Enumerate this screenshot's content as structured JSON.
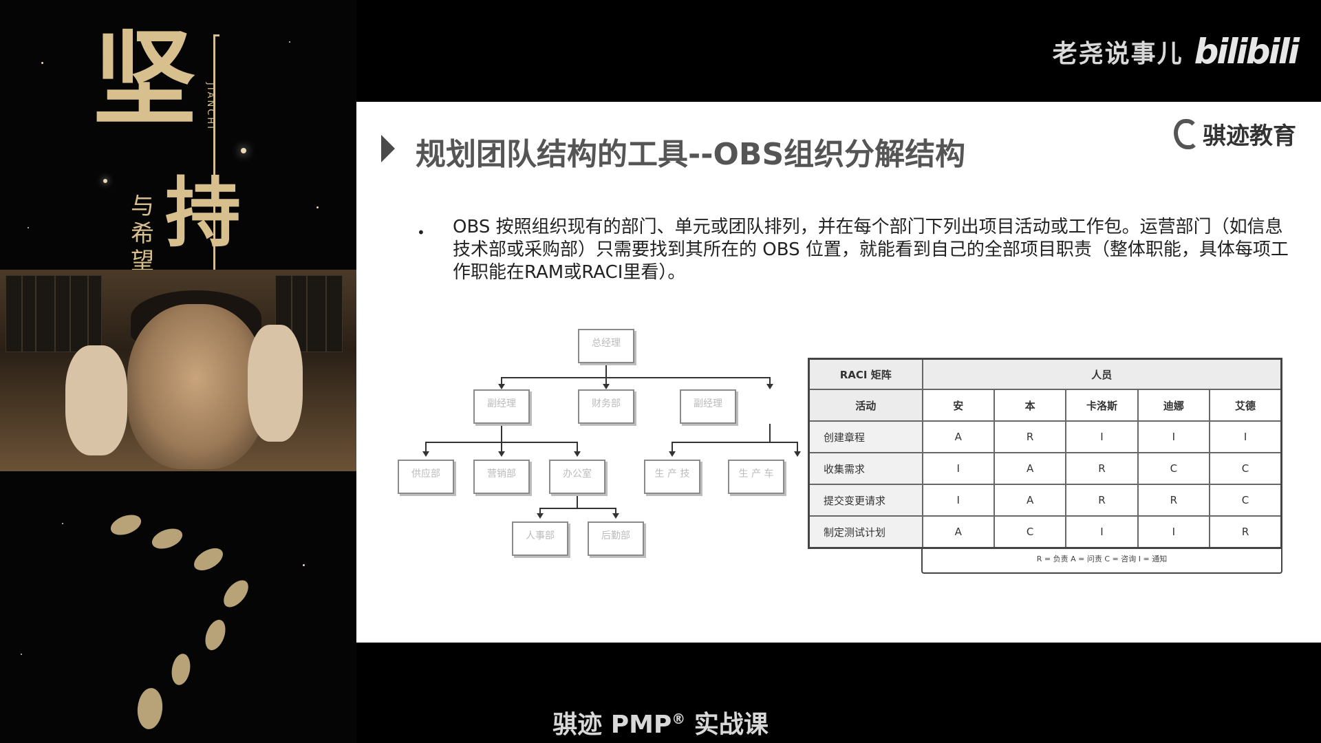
{
  "poster": {
    "title_big": "坚",
    "title_big2": "持",
    "title_vertical": "与希望",
    "pinyin": "JIANCHI"
  },
  "watermark": {
    "text": "老尧说事儿",
    "logo_text": "bilibili"
  },
  "slide": {
    "title": "规划团队结构的工具--OBS组织分解结构",
    "brand": "骐迹教育",
    "bullet": "OBS 按照组织现有的部门、单元或团队排列，并在每个部门下列出项目活动或工作包。运营部门（如信息技术部或采购部）只需要找到其所在的 OBS 位置，就能看到自己的全部项目职责（整体职能，具体每项工作职能在RAM或RACI里看）。",
    "org_chart": {
      "root": "总经理",
      "level2": [
        "副经理",
        "财务部",
        "副经理"
      ],
      "level3_left": [
        "供应部",
        "营销部",
        "办公室"
      ],
      "level3_right": [
        "生 产 技",
        "生 产 车"
      ],
      "level4": [
        "人事部",
        "后勤部"
      ]
    },
    "raci": {
      "title": "RACI 矩阵",
      "people_header": "人员",
      "activity_header": "活动",
      "people": [
        "安",
        "本",
        "卡洛斯",
        "迪娜",
        "艾德"
      ],
      "rows": [
        {
          "activity": "创建章程",
          "values": [
            "A",
            "R",
            "I",
            "I",
            "I"
          ]
        },
        {
          "activity": "收集需求",
          "values": [
            "I",
            "A",
            "R",
            "C",
            "C"
          ]
        },
        {
          "activity": "提交变更请求",
          "values": [
            "I",
            "A",
            "R",
            "R",
            "C"
          ]
        },
        {
          "activity": "制定测试计划",
          "values": [
            "A",
            "C",
            "I",
            "I",
            "R"
          ]
        }
      ],
      "legend": "R = 负责  A = 问责  C = 咨询  I = 通知"
    }
  },
  "caption": {
    "text": "骐迹 PMP",
    "sup": "®",
    "text2": " 实战课"
  }
}
